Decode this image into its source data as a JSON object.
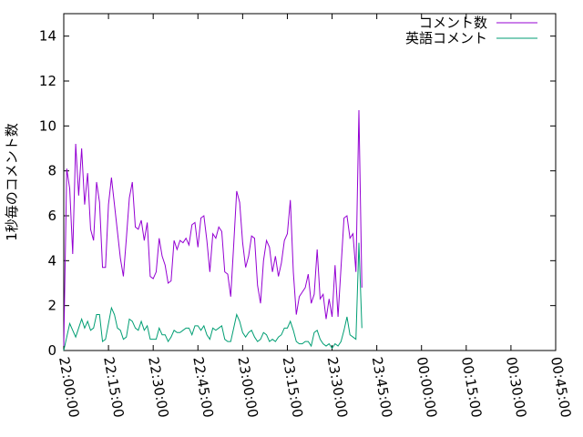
{
  "chart_data": {
    "type": "line",
    "title": "",
    "xlabel": "",
    "ylabel": "1秒毎のコメント数",
    "ylim": [
      0,
      15
    ],
    "yticks": [
      0,
      2,
      4,
      6,
      8,
      10,
      12,
      14
    ],
    "xlim": [
      "22:00:00",
      "00:45:00"
    ],
    "xticks": [
      "22:00:00",
      "22:15:00",
      "22:30:00",
      "22:45:00",
      "23:00:00",
      "23:15:00",
      "23:30:00",
      "23:45:00",
      "00:00:00",
      "00:15:00",
      "00:30:00",
      "00:45:00"
    ],
    "x_interval_seconds": 60,
    "x_start": "22:00:00",
    "legend_position": "top-right",
    "grid": false,
    "series": [
      {
        "name": "コメント数",
        "color": "#9400d3",
        "values": [
          0.2,
          8.1,
          7.2,
          4.3,
          9.2,
          6.9,
          9.0,
          6.5,
          7.9,
          5.4,
          4.9,
          7.5,
          6.6,
          3.7,
          3.7,
          6.5,
          7.7,
          6.5,
          5.3,
          4.1,
          3.3,
          5.0,
          6.8,
          7.5,
          5.5,
          5.4,
          5.8,
          4.9,
          5.7,
          3.3,
          3.2,
          3.5,
          5.0,
          4.2,
          3.8,
          3.0,
          3.1,
          4.9,
          4.5,
          4.9,
          4.8,
          5.0,
          4.7,
          5.6,
          5.7,
          4.6,
          5.9,
          6.0,
          4.9,
          3.5,
          5.2,
          5.0,
          5.5,
          5.3,
          3.5,
          3.4,
          2.4,
          4.7,
          7.1,
          6.6,
          4.8,
          3.7,
          4.2,
          5.1,
          5.0,
          2.9,
          2.1,
          4.0,
          4.9,
          4.6,
          3.5,
          4.2,
          3.3,
          3.9,
          4.9,
          5.2,
          6.7,
          3.5,
          1.6,
          2.4,
          2.6,
          2.8,
          3.4,
          2.1,
          2.5,
          4.5,
          2.3,
          2.5,
          1.4,
          2.3,
          1.5,
          3.8,
          1.5,
          3.7,
          5.9,
          6.0,
          5.0,
          5.2,
          3.5,
          10.7,
          2.8
        ]
      },
      {
        "name": "英語コメント",
        "color": "#009e73",
        "values": [
          0.0,
          0.6,
          1.2,
          0.9,
          0.6,
          1.0,
          1.4,
          1.0,
          1.3,
          0.9,
          1.0,
          1.6,
          1.6,
          0.4,
          0.5,
          1.2,
          1.9,
          1.6,
          1.0,
          0.9,
          0.5,
          0.6,
          1.4,
          1.3,
          1.0,
          0.9,
          1.3,
          0.9,
          1.1,
          0.5,
          0.5,
          0.5,
          1.0,
          0.7,
          0.7,
          0.4,
          0.6,
          0.9,
          0.8,
          0.8,
          0.9,
          1.0,
          1.0,
          0.7,
          1.1,
          1.1,
          0.9,
          1.1,
          0.7,
          0.5,
          1.0,
          0.9,
          1.0,
          1.1,
          0.5,
          0.4,
          0.4,
          1.0,
          1.6,
          1.3,
          0.8,
          0.6,
          0.8,
          0.9,
          0.6,
          0.4,
          0.5,
          0.8,
          0.7,
          0.4,
          0.5,
          0.4,
          0.6,
          0.7,
          1.0,
          1.0,
          1.3,
          0.9,
          0.4,
          0.3,
          0.3,
          0.4,
          0.4,
          0.2,
          0.8,
          0.9,
          0.5,
          0.3,
          0.2,
          0.3,
          0.1,
          0.3,
          0.2,
          0.4,
          0.9,
          1.5,
          0.7,
          0.6,
          0.5,
          4.8,
          1.0
        ]
      }
    ]
  }
}
